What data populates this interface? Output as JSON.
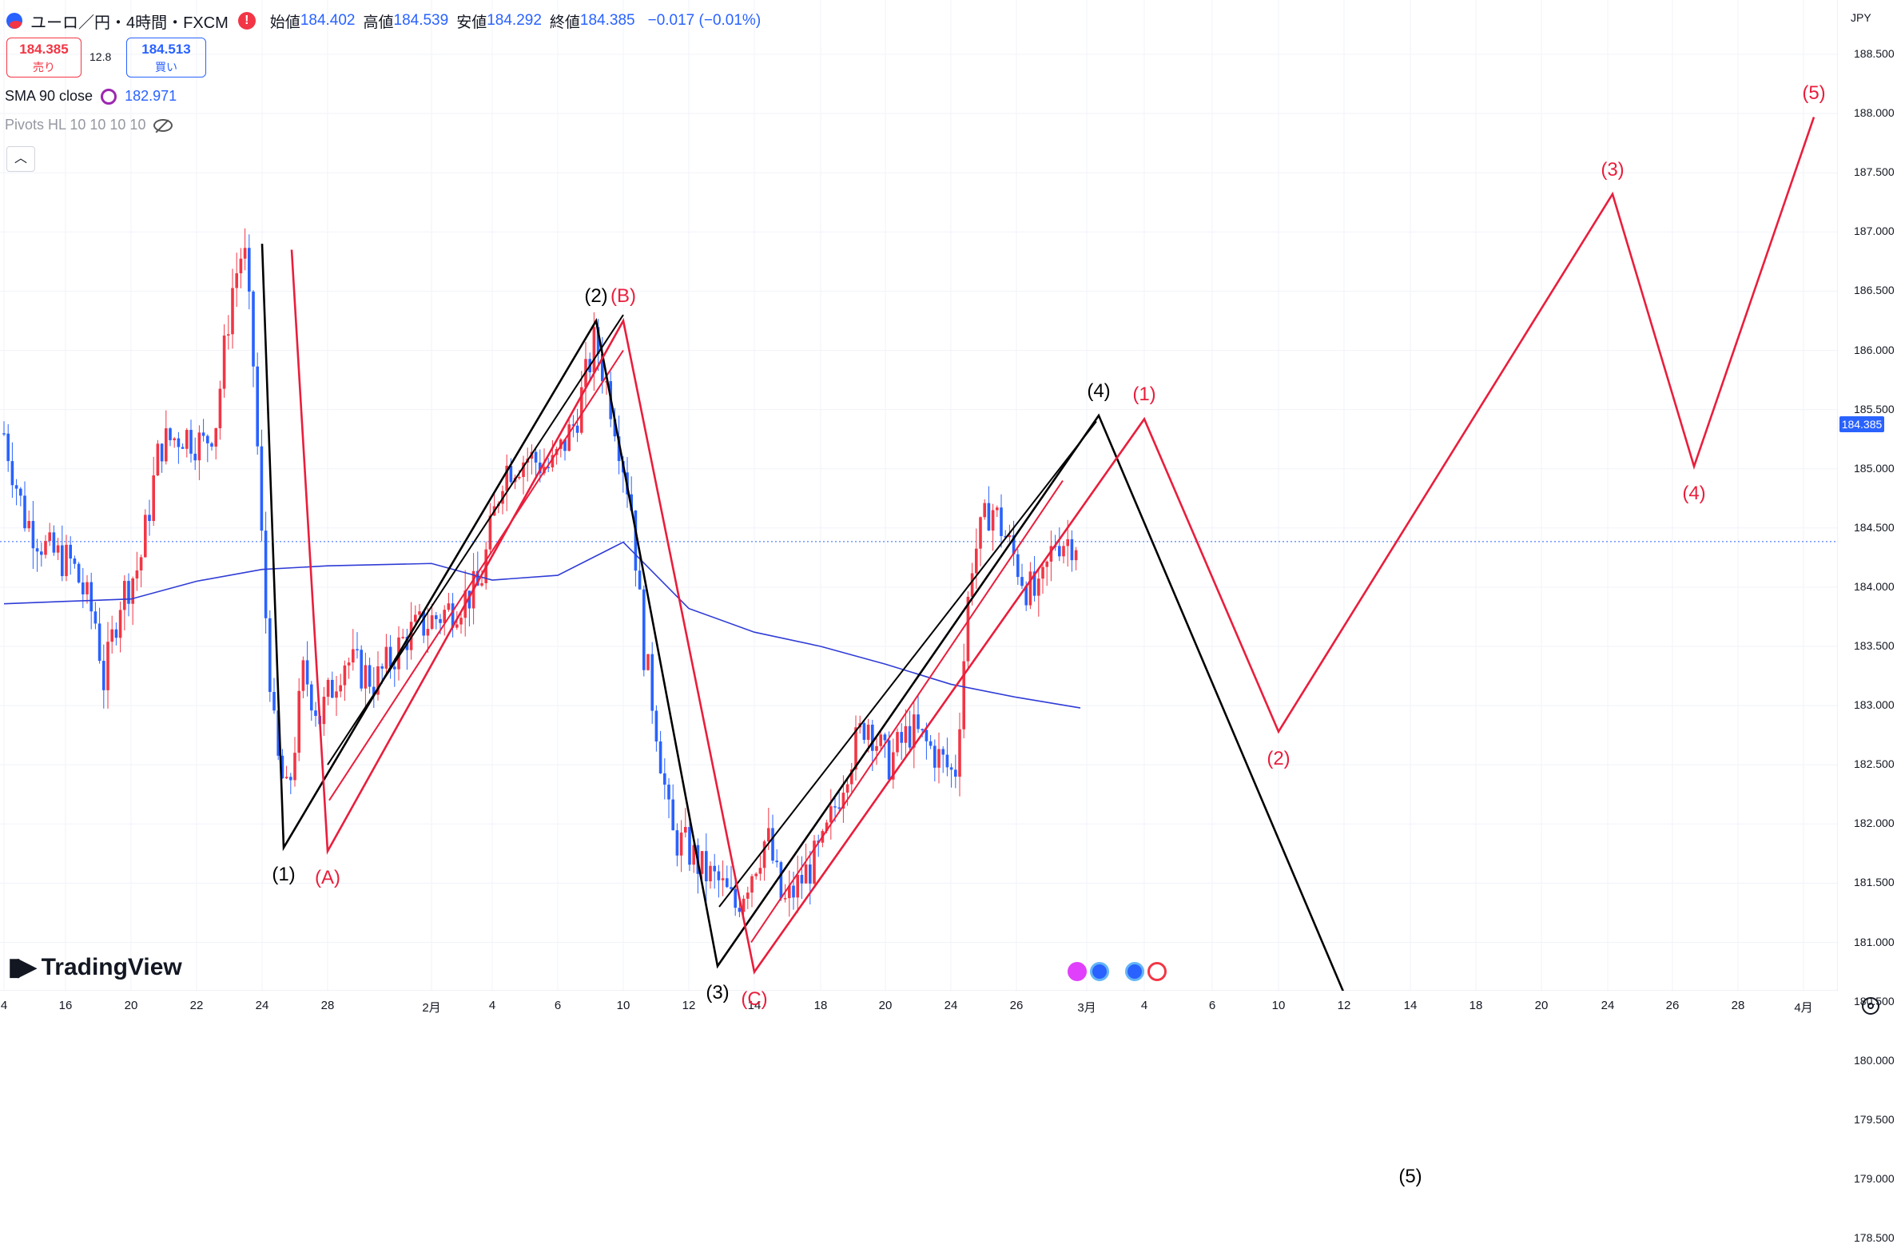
{
  "header": {
    "title": "ユーロ／円・4時間・FXCM",
    "alert_icon": "!",
    "open_label": "始値",
    "open_value": "184.402",
    "high_label": "高値",
    "high_value": "184.539",
    "low_label": "安値",
    "low_value": "184.292",
    "close_label": "終値",
    "close_value": "184.385",
    "change": "−0.017 (−0.01%)"
  },
  "trade": {
    "sell_price": "184.385",
    "sell_label": "売り",
    "spread": "12.8",
    "buy_price": "184.513",
    "buy_label": "買い"
  },
  "indicators": {
    "sma_label": "SMA 90 close",
    "sma_value": "182.971",
    "pivots_label": "Pivots HL 10 10 10 10"
  },
  "collapse_icon": "chevron-up-icon",
  "brand": "TradingView",
  "axis": {
    "currency": "JPY",
    "current_price": "184.385",
    "y_ticks": [
      "188.500",
      "188.000",
      "187.500",
      "187.000",
      "186.500",
      "186.000",
      "185.500",
      "185.000",
      "184.500",
      "184.000",
      "183.500",
      "183.000",
      "182.500",
      "182.000",
      "181.500",
      "181.000",
      "180.500",
      "180.000",
      "179.500",
      "179.000",
      "178.500"
    ],
    "x_ticks": [
      "4",
      "16",
      "20",
      "22",
      "24",
      "28",
      "2月",
      "4",
      "6",
      "10",
      "12",
      "14",
      "18",
      "20",
      "24",
      "26",
      "3月",
      "4",
      "6",
      "10",
      "12",
      "14",
      "18",
      "20",
      "24",
      "26",
      "28",
      "4月"
    ]
  },
  "colors": {
    "up": "#f23645",
    "down": "#2962ff",
    "sma": "#2f3cd6",
    "wave_black": "#000000",
    "wave_red": "#e91e3c"
  },
  "wave_labels_black": [
    "(1)",
    "(2)",
    "(3)",
    "(4)",
    "(5)"
  ],
  "wave_labels_red": [
    "(A)",
    "(B)",
    "(C)",
    "(1)",
    "(2)",
    "(3)",
    "(4)",
    "(5)"
  ],
  "chart_data": {
    "type": "candlestick",
    "ylim": [
      178.2,
      188.8
    ],
    "sma90": [
      {
        "t": "1/4",
        "y": 183.86
      },
      {
        "t": "1/16",
        "y": 183.88
      },
      {
        "t": "1/20",
        "y": 183.9
      },
      {
        "t": "1/22",
        "y": 184.05
      },
      {
        "t": "1/24",
        "y": 184.15
      },
      {
        "t": "1/28",
        "y": 184.18
      },
      {
        "t": "2/2",
        "y": 184.2
      },
      {
        "t": "2/4",
        "y": 184.06
      },
      {
        "t": "2/6",
        "y": 184.1
      },
      {
        "t": "2/10",
        "y": 184.38
      },
      {
        "t": "2/12",
        "y": 183.82
      },
      {
        "t": "2/14",
        "y": 183.62
      },
      {
        "t": "2/18",
        "y": 183.5
      },
      {
        "t": "2/20",
        "y": 183.35
      },
      {
        "t": "2/24",
        "y": 183.18
      },
      {
        "t": "2/26",
        "y": 183.07
      },
      {
        "t": "2/28",
        "y": 182.98
      }
    ],
    "wave_black": [
      {
        "label": "",
        "t": "1/24",
        "y": 186.9
      },
      {
        "label": "(1)",
        "t": "1/25",
        "y": 181.8
      },
      {
        "label": "(2)",
        "t": "2/9",
        "y": 186.25
      },
      {
        "label": "(3)",
        "t": "2/13",
        "y": 180.8
      },
      {
        "label": "(4)",
        "t": "3/3",
        "y": 185.45
      },
      {
        "label": "(5)",
        "t": "3/14",
        "y": 179.25
      }
    ],
    "wave_red": [
      {
        "label": "",
        "t": "1/26",
        "y": 186.85
      },
      {
        "label": "(A)",
        "t": "1/28",
        "y": 181.77
      },
      {
        "label": "(B)",
        "t": "2/10",
        "y": 186.25
      },
      {
        "label": "(C)",
        "t": "2/14",
        "y": 180.75
      },
      {
        "label": "(1)",
        "t": "3/4",
        "y": 185.42
      },
      {
        "label": "(2)",
        "t": "3/10",
        "y": 182.78
      },
      {
        "label": "(3)",
        "t": "3/24",
        "y": 187.32
      },
      {
        "label": "(4)",
        "t": "3/26",
        "y": 185.02
      },
      {
        "label": "(5)",
        "t": "4/1",
        "y": 187.97
      }
    ]
  }
}
